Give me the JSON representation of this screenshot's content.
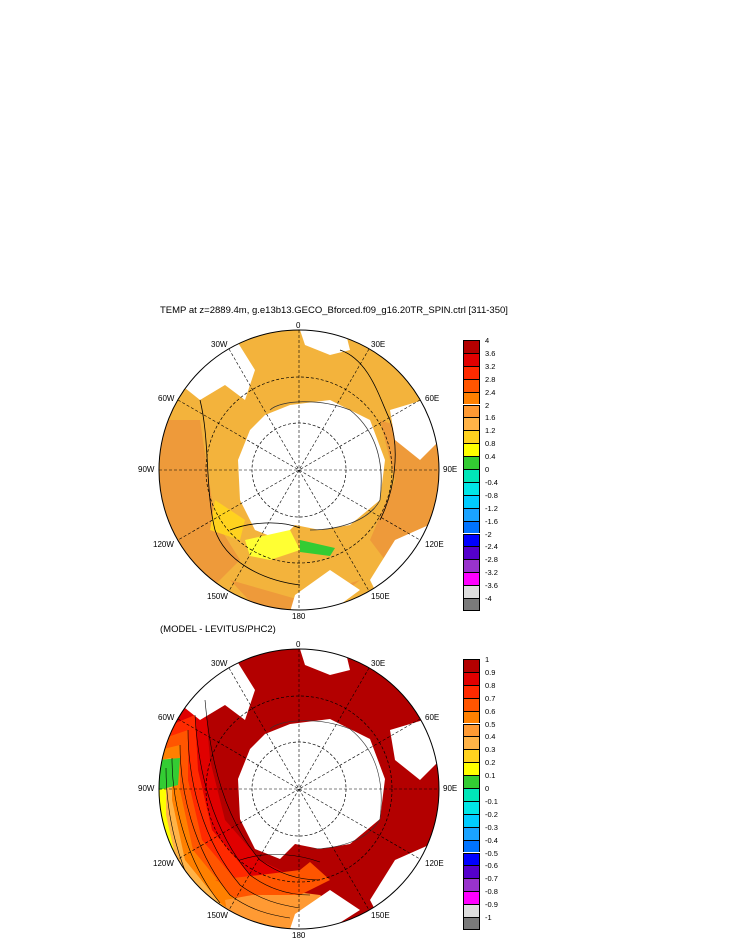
{
  "maps": [
    {
      "id": "top",
      "title": "TEMP at z=2889.4m, g.e13b13.GECO_Bforced.f09_g16.20TR_SPIN.ctrl [311-350]",
      "ocean_color": "#f3b33c",
      "lon_labels": {
        "top": "0",
        "n30e": "30E",
        "n60e": "60E",
        "e90": "90E",
        "n120e": "120E",
        "n150e": "150E",
        "bottom": "180",
        "n150w": "150W",
        "n120w": "120W",
        "w90": "90W",
        "n60w": "60W",
        "n30w": "30W"
      },
      "colorbar": {
        "labels": [
          "4",
          "3.6",
          "3.2",
          "2.8",
          "2.4",
          "2",
          "1.6",
          "1.2",
          "0.8",
          "0.4",
          "0",
          "-0.4",
          "-0.8",
          "-1.2",
          "-1.6",
          "-2",
          "-2.4",
          "-2.8",
          "-3.2",
          "-3.6",
          "-4"
        ],
        "colors": [
          "#b30000",
          "#e00000",
          "#ff2a00",
          "#ff5500",
          "#ff8000",
          "#ff9a33",
          "#ffb347",
          "#ffd21f",
          "#ffff00",
          "#33cc33",
          "#00e6b8",
          "#00e6e6",
          "#00ccff",
          "#1aa3ff",
          "#0073ff",
          "#0000ff",
          "#5500cc",
          "#9933cc",
          "#ff00ff",
          "#dddddd",
          "#7a7a7a"
        ]
      }
    },
    {
      "id": "bottom",
      "title": "(MODEL - LEVITUS/PHC2)",
      "ocean_color": "#b30000",
      "lon_labels": {
        "top": "0",
        "n30e": "30E",
        "n60e": "60E",
        "e90": "90E",
        "n120e": "120E",
        "n150e": "150E",
        "bottom": "180",
        "n150w": "150W",
        "n120w": "120W",
        "w90": "90W",
        "n60w": "60W",
        "n30w": "30W"
      },
      "colorbar": {
        "labels": [
          "1",
          "0.9",
          "0.8",
          "0.7",
          "0.6",
          "0.5",
          "0.4",
          "0.3",
          "0.2",
          "0.1",
          "0",
          "-0.1",
          "-0.2",
          "-0.3",
          "-0.4",
          "-0.5",
          "-0.6",
          "-0.7",
          "-0.8",
          "-0.9",
          "-1"
        ],
        "colors": [
          "#b30000",
          "#e00000",
          "#ff2a00",
          "#ff5500",
          "#ff8000",
          "#ff9a33",
          "#ffb347",
          "#ffd21f",
          "#ffff00",
          "#33cc33",
          "#00e6b8",
          "#00e6e6",
          "#00ccff",
          "#1aa3ff",
          "#0073ff",
          "#0000ff",
          "#5500cc",
          "#9933cc",
          "#ff00ff",
          "#dddddd",
          "#7a7a7a"
        ]
      }
    }
  ]
}
